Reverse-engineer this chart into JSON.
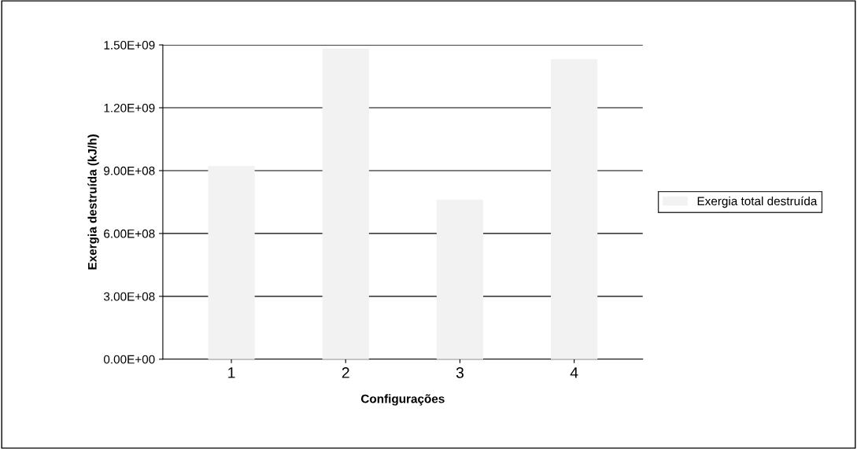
{
  "chart_data": {
    "type": "bar",
    "xlabel": "Configurações",
    "ylabel": "Exergia destruída (kJ/h)",
    "categories": [
      "1",
      "2",
      "3",
      "4"
    ],
    "series": [
      {
        "name": "Exergia total destruída",
        "color": "#f2f2f2",
        "values": [
          920000000,
          1480000000,
          760000000,
          1430000000
        ]
      }
    ],
    "ylim": [
      0,
      1500000000
    ],
    "yticks": [
      {
        "value": 0,
        "label": "0.00E+00"
      },
      {
        "value": 300000000,
        "label": "3.00E+08"
      },
      {
        "value": 600000000,
        "label": "6.00E+08"
      },
      {
        "value": 900000000,
        "label": "9.00E+08"
      },
      {
        "value": 1200000000,
        "label": "1.20E+09"
      },
      {
        "value": 1500000000,
        "label": "1.50E+09"
      }
    ],
    "grid": "y",
    "legend": "right"
  }
}
